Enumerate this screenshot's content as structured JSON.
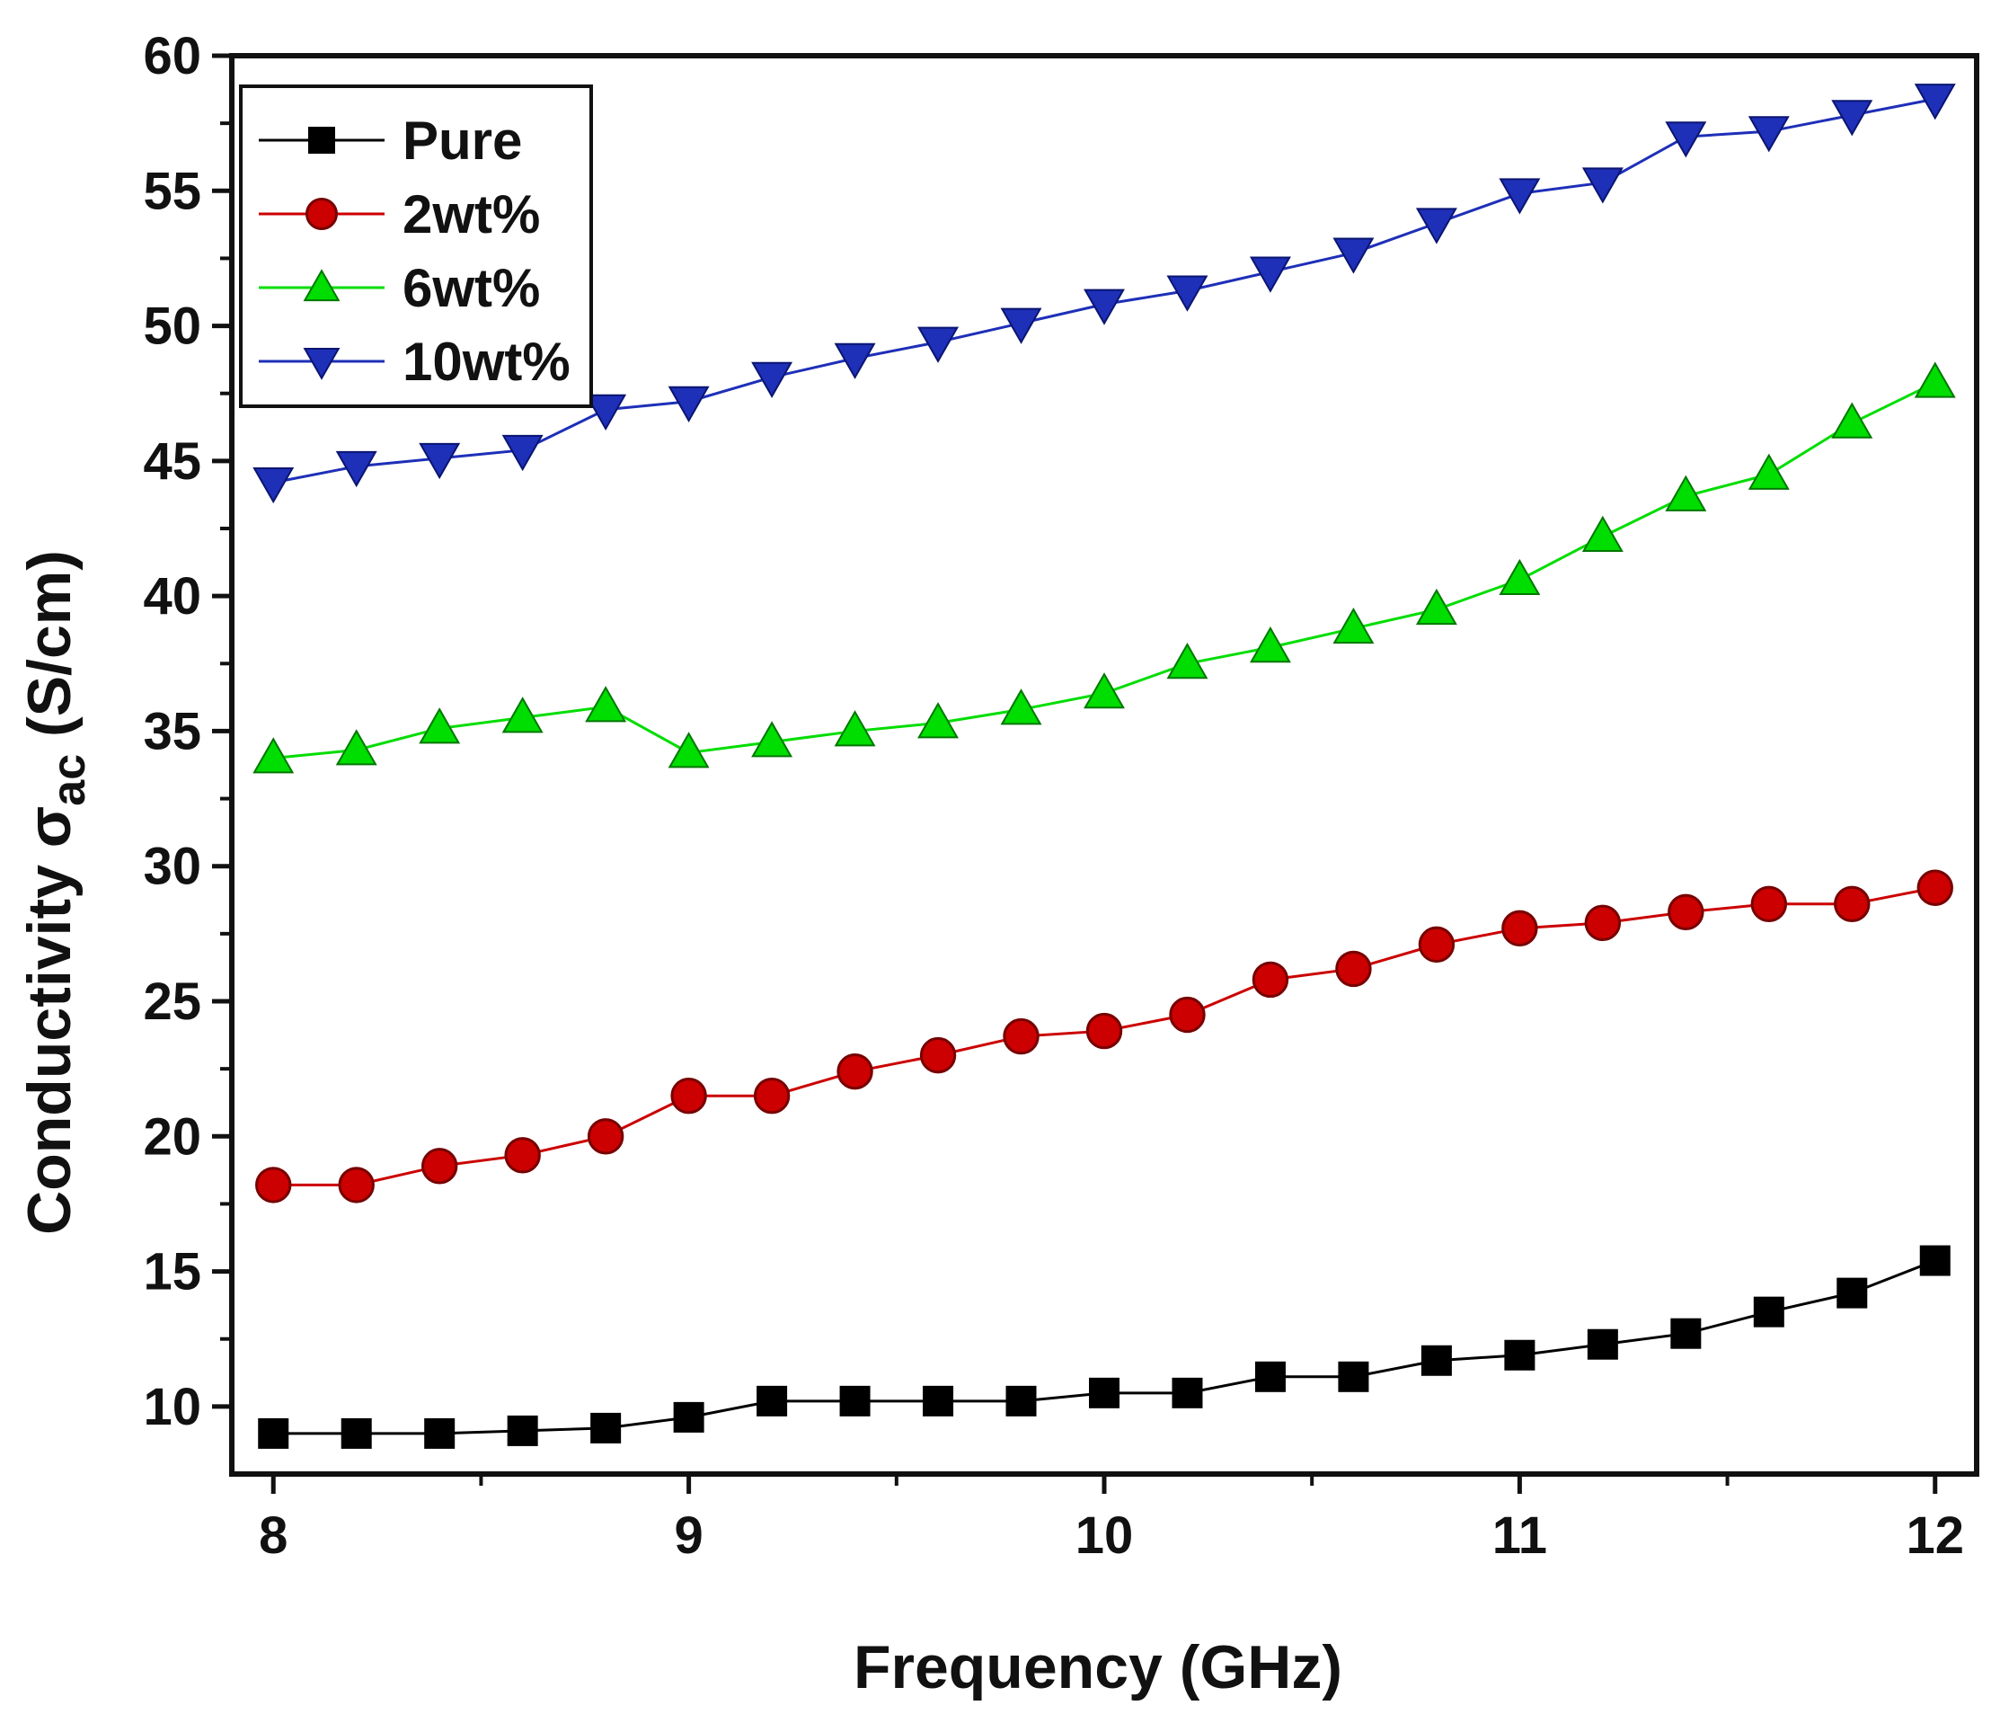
{
  "chart_data": {
    "type": "line",
    "title": "",
    "xlabel": "Frequency (GHz)",
    "ylabel": {
      "prefix": "Conductivity σ",
      "subscript": "ac",
      "suffix": " (S/cm)"
    },
    "xlim": [
      7.9,
      12.1
    ],
    "ylim": [
      7.5,
      60
    ],
    "xticks": [
      8,
      9,
      10,
      11,
      12
    ],
    "yticks": [
      10,
      15,
      20,
      25,
      30,
      35,
      40,
      45,
      50,
      55,
      60
    ],
    "x": [
      8.0,
      8.2,
      8.4,
      8.6,
      8.8,
      9.0,
      9.2,
      9.4,
      9.6,
      9.8,
      10.0,
      10.2,
      10.4,
      10.6,
      10.8,
      11.0,
      11.2,
      11.4,
      11.6,
      11.8,
      12.0
    ],
    "legend_position": "top-left",
    "series": [
      {
        "name": "Pure",
        "color": "#000000",
        "marker": "square",
        "values": [
          9.0,
          9.0,
          9.0,
          9.1,
          9.2,
          9.6,
          10.2,
          10.2,
          10.2,
          10.2,
          10.5,
          10.5,
          11.1,
          11.1,
          11.7,
          11.9,
          12.3,
          12.7,
          13.5,
          14.2,
          15.4
        ]
      },
      {
        "name": "2wt%",
        "color": "#cc0000",
        "marker": "circle",
        "values": [
          18.2,
          18.2,
          18.9,
          19.3,
          20.0,
          21.5,
          21.5,
          22.4,
          23.0,
          23.7,
          23.9,
          24.5,
          25.8,
          26.2,
          27.1,
          27.7,
          27.9,
          28.3,
          28.6,
          28.6,
          29.2
        ]
      },
      {
        "name": "6wt%",
        "color": "#00dd00",
        "marker": "triangle-up",
        "values": [
          34.0,
          34.3,
          35.1,
          35.5,
          35.9,
          34.2,
          34.6,
          35.0,
          35.3,
          35.8,
          36.4,
          37.5,
          38.1,
          38.8,
          39.5,
          40.6,
          42.2,
          43.7,
          44.5,
          46.4,
          47.9
        ]
      },
      {
        "name": "10wt%",
        "color": "#1e2fb8",
        "marker": "triangle-down",
        "values": [
          44.2,
          44.8,
          45.1,
          45.4,
          46.9,
          47.2,
          48.1,
          48.8,
          49.4,
          50.1,
          50.8,
          51.3,
          52.0,
          52.7,
          53.8,
          54.9,
          55.3,
          57.0,
          57.2,
          57.8,
          58.4
        ]
      }
    ]
  }
}
